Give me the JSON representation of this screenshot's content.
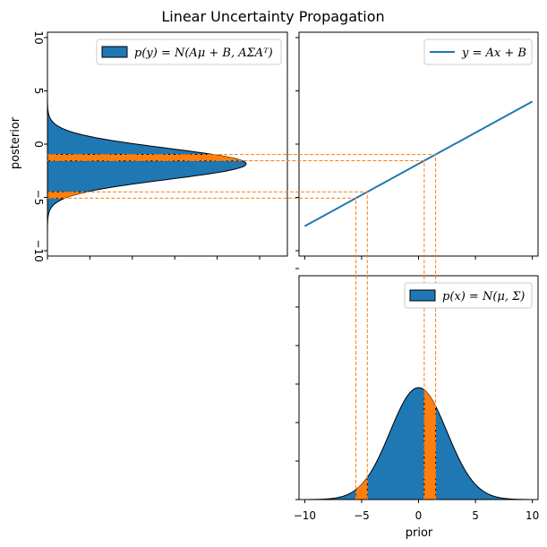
{
  "chart_data": {
    "title": "Linear Uncertainty Propagation",
    "type": "composite",
    "colors": {
      "fill": "#1f77b4",
      "highlight": "#ff7f0e",
      "line": "#1f77b4",
      "guide": "#ff7f0e"
    },
    "prior": {
      "type": "area",
      "xlabel": "prior",
      "xlim": [
        -10.5,
        10.5
      ],
      "xticks": [
        "−10",
        "−5",
        "0",
        "5",
        "10"
      ],
      "xtick_values": [
        -10,
        -5,
        0,
        5,
        10
      ],
      "mu": 0,
      "sigma": 2.5,
      "legend": "p(x) = N(μ, Σ)",
      "legend_position": "top-right",
      "highlight_bands": [
        [
          -5.5,
          -4.5
        ],
        [
          0.5,
          1.5
        ]
      ]
    },
    "transform": {
      "type": "line",
      "legend": "y = Ax + B",
      "legend_position": "top-right",
      "x": [
        -10,
        10
      ],
      "y": [
        -7.7,
        4.0
      ],
      "slope": 0.585,
      "intercept": -1.85
    },
    "posterior": {
      "type": "area",
      "ylabel": "posterior",
      "ylim": [
        -10.5,
        10.5
      ],
      "yticks": [
        "10",
        "5",
        "0",
        "−5",
        "−10"
      ],
      "ytick_values": [
        10,
        5,
        0,
        -5,
        -10
      ],
      "mu": -1.85,
      "sigma": 1.46,
      "legend": "p(y) = N(Aμ + B, AΣAᵀ)",
      "legend_position": "top-right",
      "highlight_bands": [
        [
          -5.07,
          -4.48
        ],
        [
          -1.56,
          -0.97
        ]
      ]
    }
  }
}
